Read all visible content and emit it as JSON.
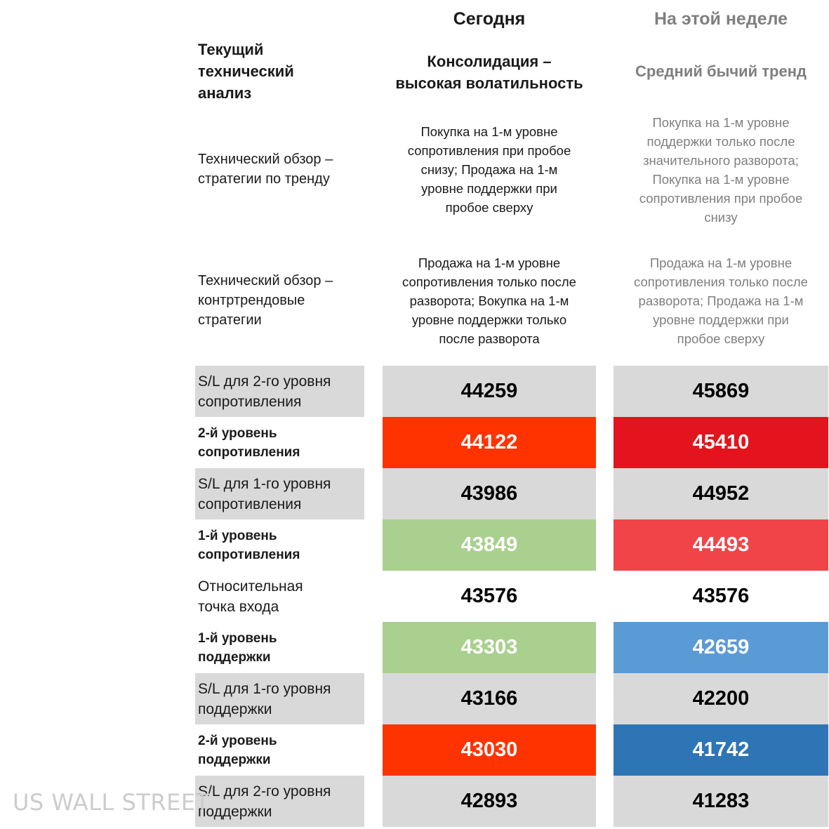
{
  "header": {
    "today": "Сегодня",
    "week": "На этой неделе"
  },
  "current_analysis": {
    "label_lines": [
      "Текущий",
      "технический",
      "анализ"
    ],
    "today_lines": [
      "Консолидация –",
      "высокая волатильность"
    ],
    "week": "Средний бычий тренд"
  },
  "strategies": [
    {
      "label_lines": [
        "Технический обзор –",
        "стратегии по тренду"
      ],
      "today_lines": [
        "Покупка на 1-м уровне",
        "сопротивления при пробое",
        "снизу; Продажа на 1-м",
        "уровне поддержки при",
        "пробое сверху"
      ],
      "week_lines": [
        "Покупка на 1-м уровне",
        "поддержки только после",
        "значительного разворота;",
        "Покупка на 1-м уровне",
        "сопротивления при пробое",
        "снизу"
      ]
    },
    {
      "label_lines": [
        "Технический обзор –",
        "контртрендовые",
        "стратегии"
      ],
      "today_lines": [
        "Продажа на 1-м уровне",
        "сопротивления только после",
        "разворота; Вокупка на 1-м",
        "уровне поддержки только",
        "после разворота"
      ],
      "week_lines": [
        "Продажа на 1-м уровне",
        "сопротивления только после",
        "разворота; Продажа на 1-м",
        "уровне поддержки при",
        "пробое сверху"
      ]
    }
  ],
  "levels": [
    {
      "label_lines": [
        "S/L для 2-го уровня",
        "сопротивления"
      ],
      "kind": "sl",
      "today": "44259",
      "week": "45869",
      "today_bg": "#d9d9d9",
      "today_fg": "#000000",
      "week_bg": "#d9d9d9",
      "week_fg": "#000000",
      "label_bg": "#d9d9d9"
    },
    {
      "label_lines": [
        "2-й уровень",
        "сопротивления"
      ],
      "kind": "key",
      "today": "44122",
      "week": "45410",
      "today_bg": "#ff3300",
      "today_fg": "#ffffff",
      "week_bg": "#e3141d",
      "week_fg": "#ffffff",
      "label_bg": "#ffffff"
    },
    {
      "label_lines": [
        "S/L для 1-го уровня",
        "сопротивления"
      ],
      "kind": "sl",
      "today": "43986",
      "week": "44952",
      "today_bg": "#d9d9d9",
      "today_fg": "#000000",
      "week_bg": "#d9d9d9",
      "week_fg": "#000000",
      "label_bg": "#d9d9d9"
    },
    {
      "label_lines": [
        "1-й уровень",
        "сопротивления"
      ],
      "kind": "key",
      "today": "43849",
      "week": "44493",
      "today_bg": "#a9d08e",
      "today_fg": "#ffffff",
      "week_bg": "#f04449",
      "week_fg": "#ffffff",
      "label_bg": "#ffffff"
    },
    {
      "label_lines": [
        "Относительная",
        "точка входа"
      ],
      "kind": "sl",
      "today": "43576",
      "week": "43576",
      "today_bg": "#ffffff",
      "today_fg": "#000000",
      "week_bg": "#ffffff",
      "week_fg": "#000000",
      "label_bg": "#ffffff"
    },
    {
      "label_lines": [
        "1-й уровень",
        "поддержки"
      ],
      "kind": "key",
      "today": "43303",
      "week": "42659",
      "today_bg": "#a9d08e",
      "today_fg": "#ffffff",
      "week_bg": "#5b9bd5",
      "week_fg": "#ffffff",
      "label_bg": "#ffffff"
    },
    {
      "label_lines": [
        "S/L для 1-го уровня",
        "поддержки"
      ],
      "kind": "sl",
      "today": "43166",
      "week": "42200",
      "today_bg": "#d9d9d9",
      "today_fg": "#000000",
      "week_bg": "#d9d9d9",
      "week_fg": "#000000",
      "label_bg": "#d9d9d9"
    },
    {
      "label_lines": [
        "2-й уровень",
        "поддержки"
      ],
      "kind": "key",
      "today": "43030",
      "week": "41742",
      "today_bg": "#ff3300",
      "today_fg": "#ffffff",
      "week_bg": "#2e75b6",
      "week_fg": "#ffffff",
      "label_bg": "#ffffff"
    },
    {
      "label_lines": [
        "S/L для 2-го уровня",
        "поддержки"
      ],
      "kind": "sl",
      "today": "42893",
      "week": "41283",
      "today_bg": "#d9d9d9",
      "today_fg": "#000000",
      "week_bg": "#d9d9d9",
      "week_fg": "#000000",
      "label_bg": "#d9d9d9"
    }
  ],
  "watermark": "US WALL STREET"
}
